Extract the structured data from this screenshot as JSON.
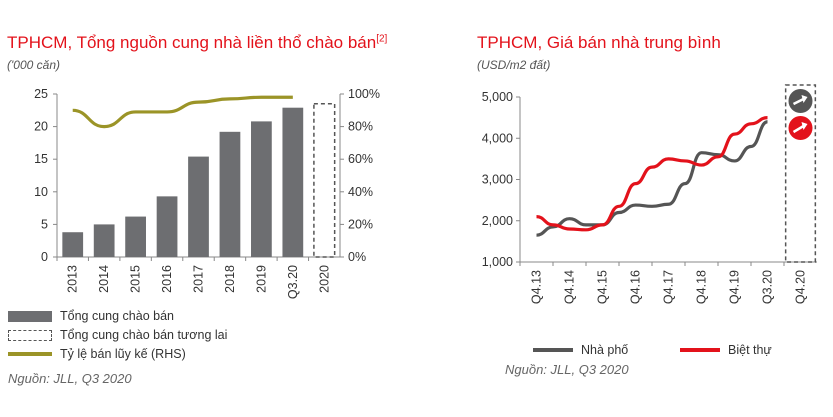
{
  "left_chart": {
    "title": "TPHCM, Tổng nguồn cung nhà liền thổ chào bán",
    "title_ref": "[2]",
    "subtitle": "('000 căn)",
    "source": "Nguồn: JLL, Q3 2020",
    "legend": {
      "bar": "Tổng cung chào bán",
      "future": "Tổng cung chào bán tương lai",
      "line": "Tỷ lệ bán lũy kế (RHS)"
    }
  },
  "right_chart": {
    "title": "TPHCM, Giá bán nhà trung bình",
    "subtitle": "(USD/m2 đất)",
    "source": "Nguồn: JLL, Q3 2020",
    "legend": {
      "townhouse": "Nhà phố",
      "villa": "Biệt thự"
    }
  },
  "chart_data": [
    {
      "type": "bar",
      "categories": [
        "2013",
        "2014",
        "2015",
        "2016",
        "2017",
        "2018",
        "2019",
        "Q3.20",
        "2020"
      ],
      "series": [
        {
          "name": "Tổng cung chào bán",
          "values": [
            3.8,
            5.0,
            6.2,
            9.3,
            15.4,
            19.2,
            20.8,
            22.9,
            null
          ],
          "color": "#6d6e71"
        },
        {
          "name": "Tổng cung chào bán tương lai",
          "values": [
            null,
            null,
            null,
            null,
            null,
            null,
            null,
            null,
            23.5
          ],
          "style": "dashed-outline",
          "color": "#555555"
        },
        {
          "name": "Tỷ lệ bán lũy kế (RHS)",
          "type": "line",
          "axis": "right",
          "values": [
            0.9,
            0.8,
            0.89,
            0.89,
            0.95,
            0.97,
            0.98,
            0.98,
            null
          ],
          "color": "#9b9427"
        }
      ],
      "ylim": [
        0,
        25
      ],
      "yticks": [
        "0",
        "5",
        "10",
        "15",
        "20",
        "25"
      ],
      "y2lim": [
        0,
        1
      ],
      "y2ticks": [
        "0%",
        "20%",
        "40%",
        "60%",
        "80%",
        "100%"
      ],
      "grid": false,
      "legend": "bottom"
    },
    {
      "type": "line",
      "categories": [
        "Q4.13",
        "Q4.14",
        "Q4.15",
        "Q4.16",
        "Q4.17",
        "Q4.18",
        "Q4.19",
        "Q3.20",
        "Q4.20"
      ],
      "series": [
        {
          "name": "Nhà phố",
          "color": "#555555",
          "points": [
            [
              0,
              1650
            ],
            [
              0.5,
              1850
            ],
            [
              1,
              2050
            ],
            [
              1.5,
              1900
            ],
            [
              2,
              1900
            ],
            [
              2.5,
              2200
            ],
            [
              3,
              2380
            ],
            [
              3.5,
              2350
            ],
            [
              4,
              2400
            ],
            [
              4.5,
              2900
            ],
            [
              5,
              3650
            ],
            [
              5.5,
              3600
            ],
            [
              6,
              3450
            ],
            [
              6.5,
              3800
            ],
            [
              7,
              4400
            ]
          ],
          "forecast_marker": "arrow-flat"
        },
        {
          "name": "Biệt thự",
          "color": "#e3121b",
          "points": [
            [
              0,
              2100
            ],
            [
              0.5,
              1900
            ],
            [
              1,
              1800
            ],
            [
              1.5,
              1780
            ],
            [
              2,
              1900
            ],
            [
              2.5,
              2350
            ],
            [
              3,
              2900
            ],
            [
              3.5,
              3300
            ],
            [
              4,
              3500
            ],
            [
              4.5,
              3450
            ],
            [
              5,
              3350
            ],
            [
              5.5,
              3550
            ],
            [
              6,
              4100
            ],
            [
              6.5,
              4350
            ],
            [
              7,
              4500
            ]
          ],
          "forecast_marker": "arrow-up"
        }
      ],
      "ylim": [
        1000,
        5000
      ],
      "yticks": [
        "1,000",
        "2,000",
        "3,000",
        "4,000",
        "5,000"
      ],
      "grid": false,
      "legend": "bottom"
    }
  ]
}
